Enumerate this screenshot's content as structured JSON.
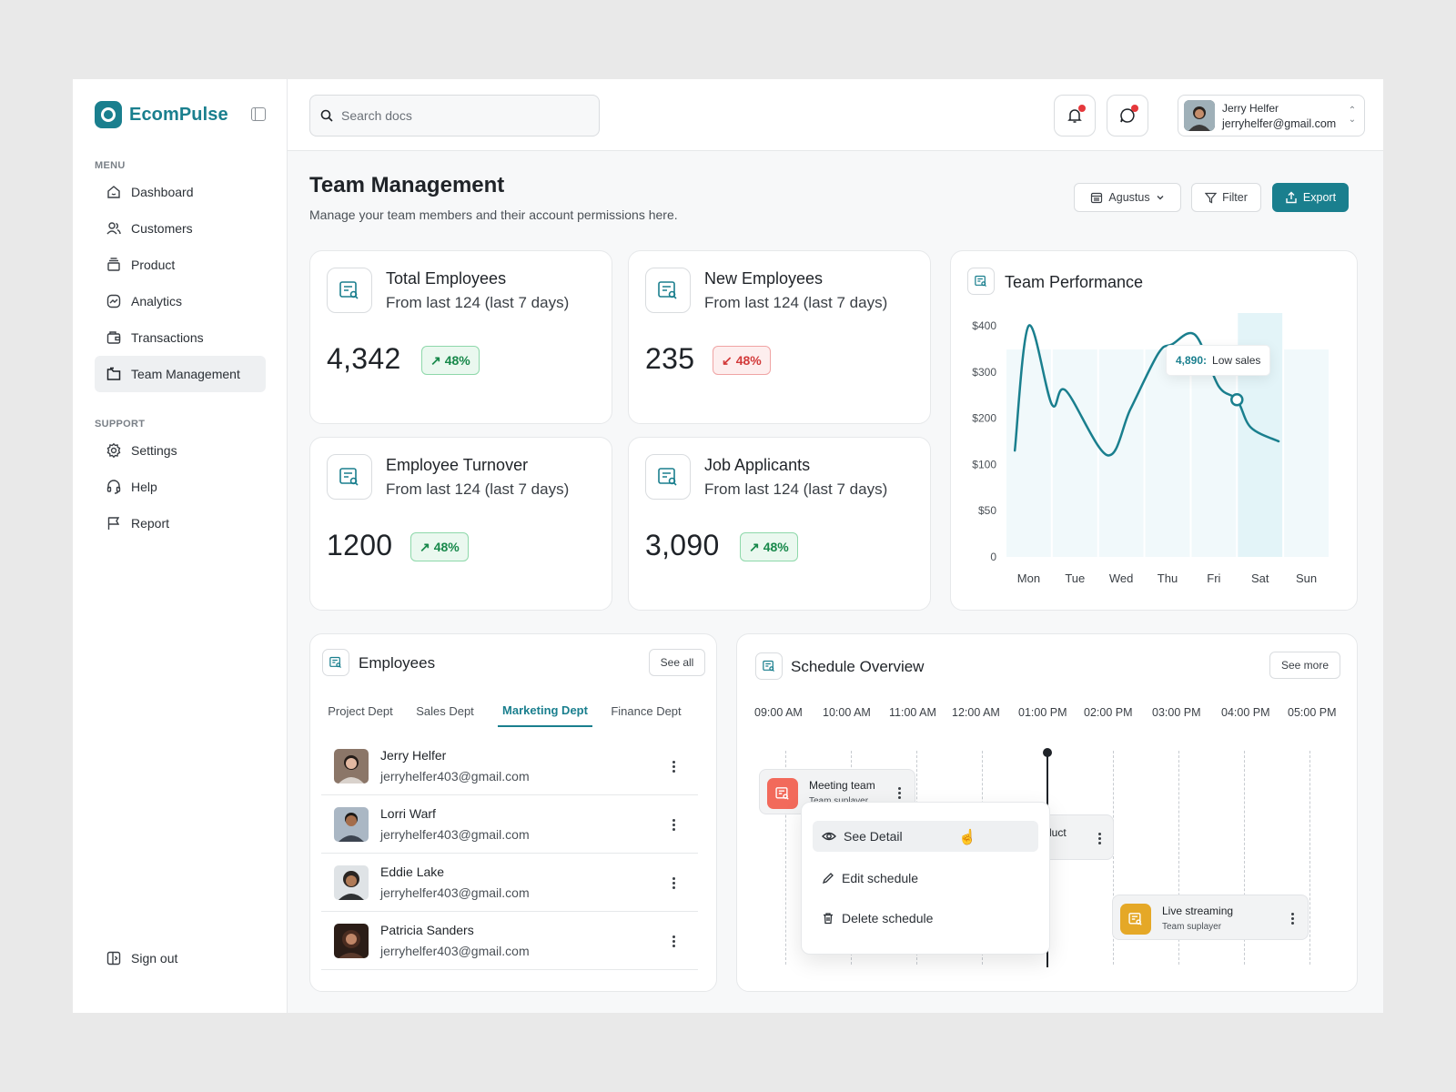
{
  "brand": {
    "name": "EcomPulse"
  },
  "sidebar": {
    "menu_title": "MENU",
    "menu_items": [
      {
        "label": "Dashboard",
        "icon": "home-icon"
      },
      {
        "label": "Customers",
        "icon": "users-icon"
      },
      {
        "label": "Product",
        "icon": "box-icon"
      },
      {
        "label": "Analytics",
        "icon": "analytics-icon"
      },
      {
        "label": "Transactions",
        "icon": "wallet-icon"
      },
      {
        "label": "Team Management",
        "icon": "folder-icon",
        "active": true
      }
    ],
    "support_title": "SUPPORT",
    "support_items": [
      {
        "label": "Settings",
        "icon": "gear-icon"
      },
      {
        "label": "Help",
        "icon": "headset-icon"
      },
      {
        "label": "Report",
        "icon": "flag-icon"
      }
    ],
    "sign_out": "Sign out"
  },
  "topbar": {
    "search_placeholder": "Search docs",
    "user": {
      "name": "Jerry Helfer",
      "email": "jerryhelfer@gmail.com"
    }
  },
  "page": {
    "title": "Team Management",
    "subtitle": "Manage your team members and their account permissions here.",
    "month_select": "Agustus",
    "filter_label": "Filter",
    "export_label": "Export"
  },
  "stats": [
    {
      "title": "Total Employees",
      "sub": "From last 124 (last 7 days)",
      "value": "4,342",
      "change": "48%",
      "trend": "up"
    },
    {
      "title": "New Employees",
      "sub": "From last 124 (last 7 days)",
      "value": "235",
      "change": "48%",
      "trend": "down"
    },
    {
      "title": "Employee Turnover",
      "sub": "From last 124 (last 7 days)",
      "value": "1200",
      "change": "48%",
      "trend": "up"
    },
    {
      "title": "Job Applicants",
      "sub": "From last 124 (last 7 days)",
      "value": "3,090",
      "change": "48%",
      "trend": "up"
    }
  ],
  "performance": {
    "title": "Team Performance",
    "tooltip_value": "4,890:",
    "tooltip_label": "Low sales"
  },
  "chart_data": {
    "type": "line",
    "title": "Team Performance",
    "categories": [
      "Mon",
      "Tue",
      "Wed",
      "Thu",
      "Fri",
      "Sat",
      "Sun"
    ],
    "y_ticks": [
      "$400",
      "$300",
      "$200",
      "$100",
      "$50",
      "0"
    ],
    "y_tick_values": [
      400,
      300,
      200,
      100,
      50,
      0
    ],
    "x_points": [
      0.2,
      0.5,
      1.0,
      1.3,
      2.2,
      2.7,
      3.3,
      3.6,
      4.1,
      4.6,
      5.0,
      5.3,
      5.9
    ],
    "y_points": [
      130,
      400,
      230,
      260,
      120,
      220,
      340,
      360,
      380,
      270,
      240,
      180,
      150
    ],
    "highlight_category": "Sat",
    "marker": {
      "x": 5.0,
      "y": 240
    },
    "grid": false,
    "line_color": "#1a7f8e"
  },
  "employees": {
    "title": "Employees",
    "see_all": "See all",
    "tabs": [
      "Project Dept",
      "Sales Dept",
      "Marketing Dept",
      "Finance Dept"
    ],
    "active_tab": "Marketing Dept",
    "rows": [
      {
        "name": "Jerry Helfer",
        "email": "jerryhelfer403@gmail.com"
      },
      {
        "name": "Lorri Warf",
        "email": "jerryhelfer403@gmail.com"
      },
      {
        "name": "Eddie Lake",
        "email": "jerryhelfer403@gmail.com"
      },
      {
        "name": "Patricia Sanders",
        "email": "jerryhelfer403@gmail.com"
      }
    ]
  },
  "schedule": {
    "title": "Schedule Overview",
    "see_more": "See more",
    "times": [
      "09:00 AM",
      "10:00 AM",
      "11:00 AM",
      "12:00 AM",
      "01:00 PM",
      "02:00 PM",
      "03:00 PM",
      "04:00 PM",
      "05:00 PM"
    ],
    "events": [
      {
        "title": "Meeting team",
        "sub": "Team suplayer",
        "color": "#f26a5b"
      },
      {
        "title": "luct",
        "sub": ""
      },
      {
        "title": "Live streaming",
        "sub": "Team suplayer",
        "color": "#e5a827"
      }
    ],
    "context_menu": [
      "See Detail",
      "Edit schedule",
      "Delete schedule"
    ]
  }
}
